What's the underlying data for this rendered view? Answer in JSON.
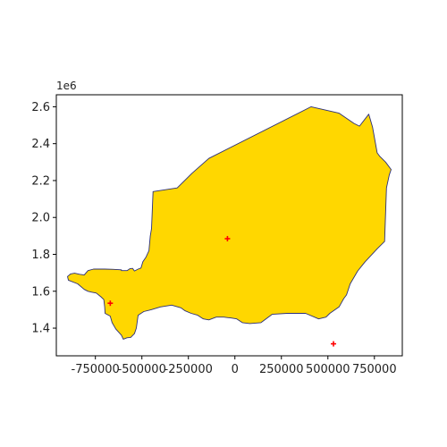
{
  "figure": {
    "background": "#ffffff",
    "axes_edge_color": "#000000",
    "y_offset_label": "1e6"
  },
  "map": {
    "region_fill": "#FFD700",
    "region_stroke": "#2b2f7a",
    "marker_color": "#ff0000",
    "marker_symbol": "plus",
    "xlim": [
      -960000,
      900000
    ],
    "ylim": [
      1250000,
      2665000
    ],
    "x_ticks": [
      {
        "value": -750000,
        "label": "-750000"
      },
      {
        "value": -500000,
        "label": "-500000"
      },
      {
        "value": -250000,
        "label": "-250000"
      },
      {
        "value": 0,
        "label": "0"
      },
      {
        "value": 250000,
        "label": "250000"
      },
      {
        "value": 500000,
        "label": "500000"
      },
      {
        "value": 750000,
        "label": "750000"
      }
    ],
    "y_ticks": [
      {
        "value": 1400000,
        "label": "1.4"
      },
      {
        "value": 1600000,
        "label": "1.6"
      },
      {
        "value": 1800000,
        "label": "1.8"
      },
      {
        "value": 2000000,
        "label": "2.0"
      },
      {
        "value": 2200000,
        "label": "2.2"
      },
      {
        "value": 2400000,
        "label": "2.4"
      },
      {
        "value": 2600000,
        "label": "2.6"
      }
    ],
    "outline": [
      [
        -883000,
        1694000
      ],
      [
        -862000,
        1698000
      ],
      [
        -835000,
        1692000
      ],
      [
        -810000,
        1688000
      ],
      [
        -790000,
        1712000
      ],
      [
        -760000,
        1720000
      ],
      [
        -700000,
        1720000
      ],
      [
        -640000,
        1718000
      ],
      [
        -610000,
        1716000
      ],
      [
        -610000,
        1712000
      ],
      [
        -580000,
        1712000
      ],
      [
        -565000,
        1722000
      ],
      [
        -550000,
        1724000
      ],
      [
        -540000,
        1710000
      ],
      [
        -520000,
        1720000
      ],
      [
        -505000,
        1726000
      ],
      [
        -495000,
        1760000
      ],
      [
        -478000,
        1785000
      ],
      [
        -462000,
        1820000
      ],
      [
        -455000,
        1900000
      ],
      [
        -448000,
        1940000
      ],
      [
        -440000,
        2140000
      ],
      [
        -310000,
        2160000
      ],
      [
        -230000,
        2240000
      ],
      [
        -140000,
        2320000
      ],
      [
        410000,
        2600000
      ],
      [
        560000,
        2565000
      ],
      [
        640000,
        2510000
      ],
      [
        670000,
        2495000
      ],
      [
        720000,
        2560000
      ],
      [
        740000,
        2490000
      ],
      [
        765000,
        2350000
      ],
      [
        780000,
        2330000
      ],
      [
        810000,
        2300000
      ],
      [
        840000,
        2260000
      ],
      [
        830000,
        2230000
      ],
      [
        815000,
        2160000
      ],
      [
        805000,
        1870000
      ],
      [
        765000,
        1830000
      ],
      [
        700000,
        1760000
      ],
      [
        660000,
        1710000
      ],
      [
        620000,
        1640000
      ],
      [
        600000,
        1580000
      ],
      [
        585000,
        1560000
      ],
      [
        560000,
        1515000
      ],
      [
        510000,
        1480000
      ],
      [
        490000,
        1460000
      ],
      [
        450000,
        1450000
      ],
      [
        380000,
        1480000
      ],
      [
        280000,
        1480000
      ],
      [
        200000,
        1475000
      ],
      [
        140000,
        1430000
      ],
      [
        80000,
        1425000
      ],
      [
        40000,
        1430000
      ],
      [
        10000,
        1450000
      ],
      [
        -20000,
        1455000
      ],
      [
        -60000,
        1460000
      ],
      [
        -100000,
        1460000
      ],
      [
        -140000,
        1445000
      ],
      [
        -170000,
        1450000
      ],
      [
        -200000,
        1470000
      ],
      [
        -235000,
        1480000
      ],
      [
        -270000,
        1495000
      ],
      [
        -290000,
        1510000
      ],
      [
        -340000,
        1525000
      ],
      [
        -400000,
        1515000
      ],
      [
        -450000,
        1500000
      ],
      [
        -490000,
        1490000
      ],
      [
        -520000,
        1470000
      ],
      [
        -530000,
        1400000
      ],
      [
        -540000,
        1370000
      ],
      [
        -560000,
        1350000
      ],
      [
        -580000,
        1348000
      ],
      [
        -600000,
        1340000
      ],
      [
        -610000,
        1362000
      ],
      [
        -640000,
        1395000
      ],
      [
        -660000,
        1430000
      ],
      [
        -670000,
        1465000
      ],
      [
        -698000,
        1480000
      ],
      [
        -700000,
        1515000
      ],
      [
        -705000,
        1555000
      ],
      [
        -720000,
        1570000
      ],
      [
        -745000,
        1590000
      ],
      [
        -770000,
        1595000
      ],
      [
        -790000,
        1600000
      ],
      [
        -810000,
        1610000
      ],
      [
        -845000,
        1640000
      ],
      [
        -895000,
        1660000
      ],
      [
        -900000,
        1680000
      ]
    ],
    "markers": [
      {
        "x": -670000,
        "y": 1535000
      },
      {
        "x": -40000,
        "y": 1885000
      },
      {
        "x": 530000,
        "y": 1315000
      }
    ]
  }
}
